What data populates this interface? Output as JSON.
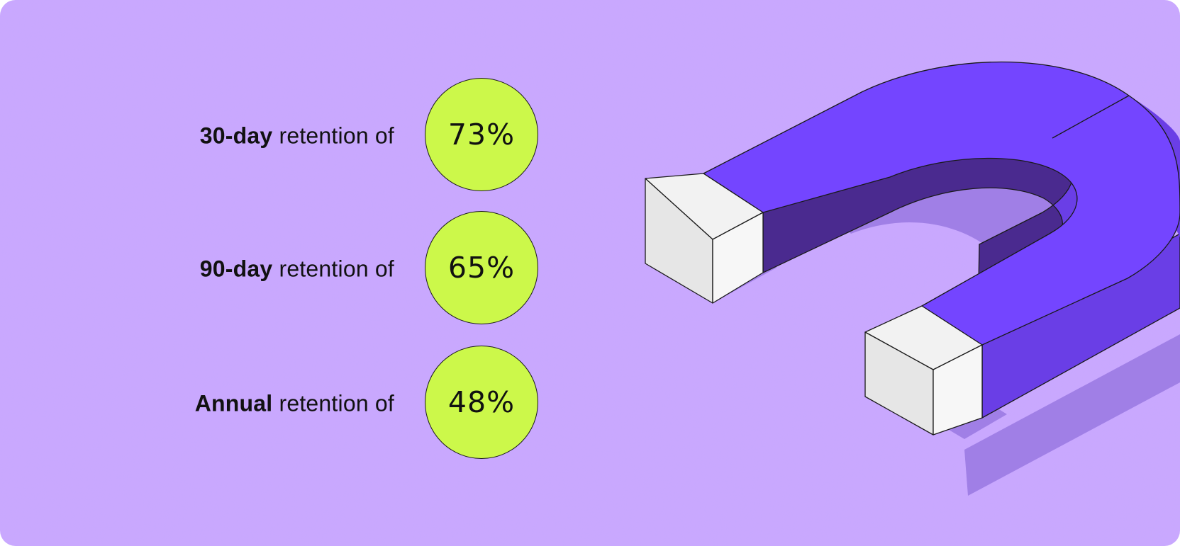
{
  "colors": {
    "background": "#c9a8ff",
    "circle_fill": "#ccf84a",
    "magnet_top": "#7445ff",
    "magnet_inner": "#4a2a8f",
    "magnet_side": "#6a3ee6",
    "pole_face": "#efefef"
  },
  "icons": {
    "illustration": "horseshoe-magnet-icon"
  },
  "retention": [
    {
      "period": "30-day",
      "text": "retention of",
      "value": "73%"
    },
    {
      "period": "90-day",
      "text": "retention of",
      "value": "65%"
    },
    {
      "period": "Annual",
      "text": "retention of",
      "value": "48%"
    }
  ]
}
